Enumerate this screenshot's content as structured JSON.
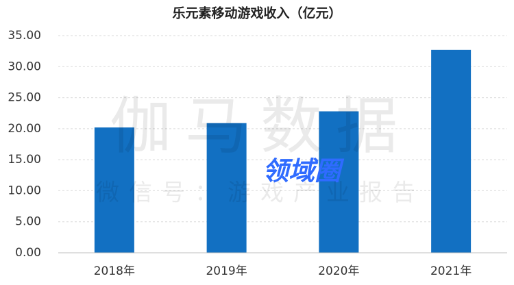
{
  "chart_data": {
    "type": "bar",
    "title": "乐元素移动游戏收入（亿元）",
    "categories": [
      "2018年",
      "2019年",
      "2020年",
      "2021年"
    ],
    "values": [
      20.2,
      20.9,
      22.8,
      32.7
    ],
    "color": "#1270c2",
    "ylim": [
      0,
      35
    ],
    "yticks": [
      {
        "value": 0,
        "label": "0.00"
      },
      {
        "value": 5,
        "label": "5.00"
      },
      {
        "value": 10,
        "label": "10.00"
      },
      {
        "value": 15,
        "label": "15.00"
      },
      {
        "value": 20,
        "label": "20.00"
      },
      {
        "value": 25,
        "label": "25.00"
      },
      {
        "value": 30,
        "label": "30.00"
      },
      {
        "value": 35,
        "label": "35.00"
      }
    ],
    "grid": true,
    "watermarks": [
      "伽马数据",
      "微信号：游戏产业报告",
      "领域圈"
    ]
  }
}
